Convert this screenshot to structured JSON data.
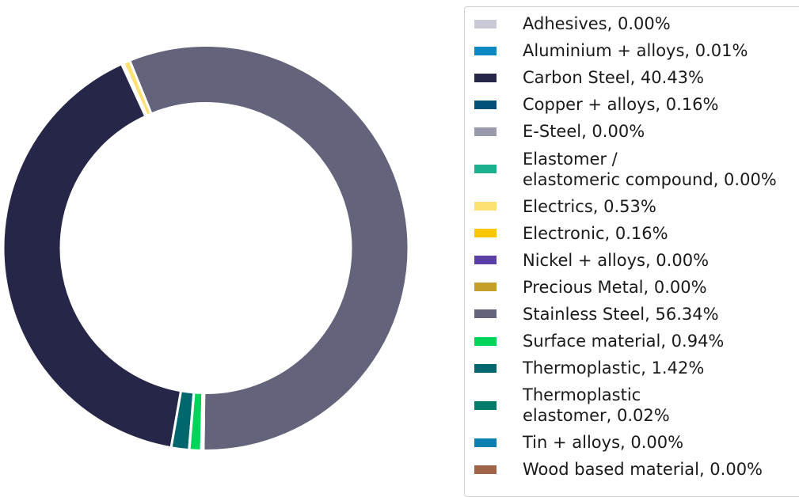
{
  "chart_data": {
    "type": "pie",
    "donut": true,
    "legend_position": "right",
    "slices": [
      {
        "label": "Adhesives, 0.00%",
        "value": 0.0,
        "color": "#c9c9d6"
      },
      {
        "label": "Aluminium + alloys, 0.01%",
        "value": 0.01,
        "color": "#0a88c4"
      },
      {
        "label": "Carbon Steel, 40.43%",
        "value": 40.43,
        "color": "#262748"
      },
      {
        "label": "Copper + alloys, 0.16%",
        "value": 0.16,
        "color": "#014f7a"
      },
      {
        "label": "E-Steel, 0.00%",
        "value": 0.0,
        "color": "#9a9aad"
      },
      {
        "label": [
          "Elastomer /",
          "elastomeric compound, 0.00%"
        ],
        "value": 0.0,
        "color": "#1db08e"
      },
      {
        "label": "Electrics, 0.53%",
        "value": 0.53,
        "color": "#ffe173"
      },
      {
        "label": "Electronic, 0.16%",
        "value": 0.16,
        "color": "#f9c600"
      },
      {
        "label": "Nickel + alloys, 0.00%",
        "value": 0.0,
        "color": "#5b3ea6"
      },
      {
        "label": "Precious Metal, 0.00%",
        "value": 0.0,
        "color": "#c3a02a"
      },
      {
        "label": "Stainless Steel, 56.34%",
        "value": 56.34,
        "color": "#63647c"
      },
      {
        "label": "Surface material, 0.94%",
        "value": 0.94,
        "color": "#00d45a"
      },
      {
        "label": "Thermoplastic, 1.42%",
        "value": 1.42,
        "color": "#00676d"
      },
      {
        "label": [
          "Thermoplastic",
          "elastomer, 0.02%"
        ],
        "value": 0.02,
        "color": "#007c68"
      },
      {
        "label": "Tin + alloys, 0.00%",
        "value": 0.0,
        "color": "#0c7fb0"
      },
      {
        "label": "Wood based material, 0.00%",
        "value": 0.0,
        "color": "#a0644a"
      }
    ],
    "draw_order": [
      10,
      6,
      7,
      2,
      12,
      13,
      11,
      3,
      1,
      0,
      4,
      5,
      8,
      9,
      14,
      15
    ]
  }
}
